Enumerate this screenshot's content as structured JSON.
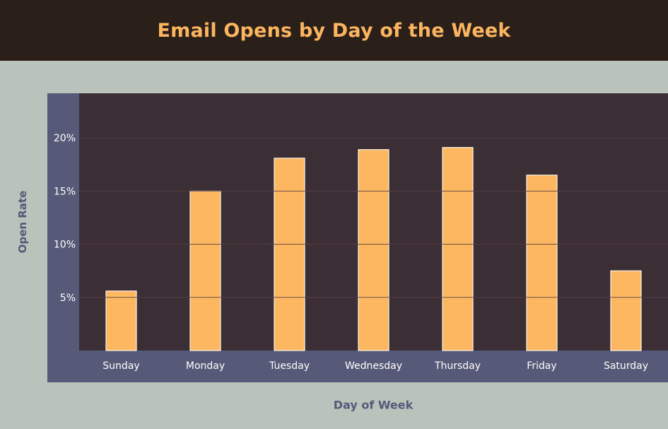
{
  "chart_data": {
    "type": "bar",
    "title": "Email Opens by Day of the Week",
    "xlabel": "Day of Week",
    "ylabel": "Open Rate",
    "categories": [
      "Sunday",
      "Monday",
      "Tuesday",
      "Wednesday",
      "Thursday",
      "Friday",
      "Saturday"
    ],
    "values": [
      5.6,
      15.0,
      18.1,
      18.9,
      19.1,
      16.5,
      7.5
    ],
    "value_unit": "%",
    "yticks": [
      "5%",
      "10%",
      "15%",
      "20%"
    ],
    "ytick_values": [
      5,
      10,
      15,
      20
    ],
    "ylim": [
      0,
      24.2
    ],
    "grid": true,
    "legend": "none",
    "colors": {
      "bar": "#fdb760",
      "bar_stroke": "#fff6e8",
      "plot_bg": "#3b2f35",
      "frame_bg": "#575978",
      "grid": "#5a3e42",
      "tick_text": "#ffffff",
      "title_text": "#fdb560",
      "axis_title": "#575978"
    }
  }
}
